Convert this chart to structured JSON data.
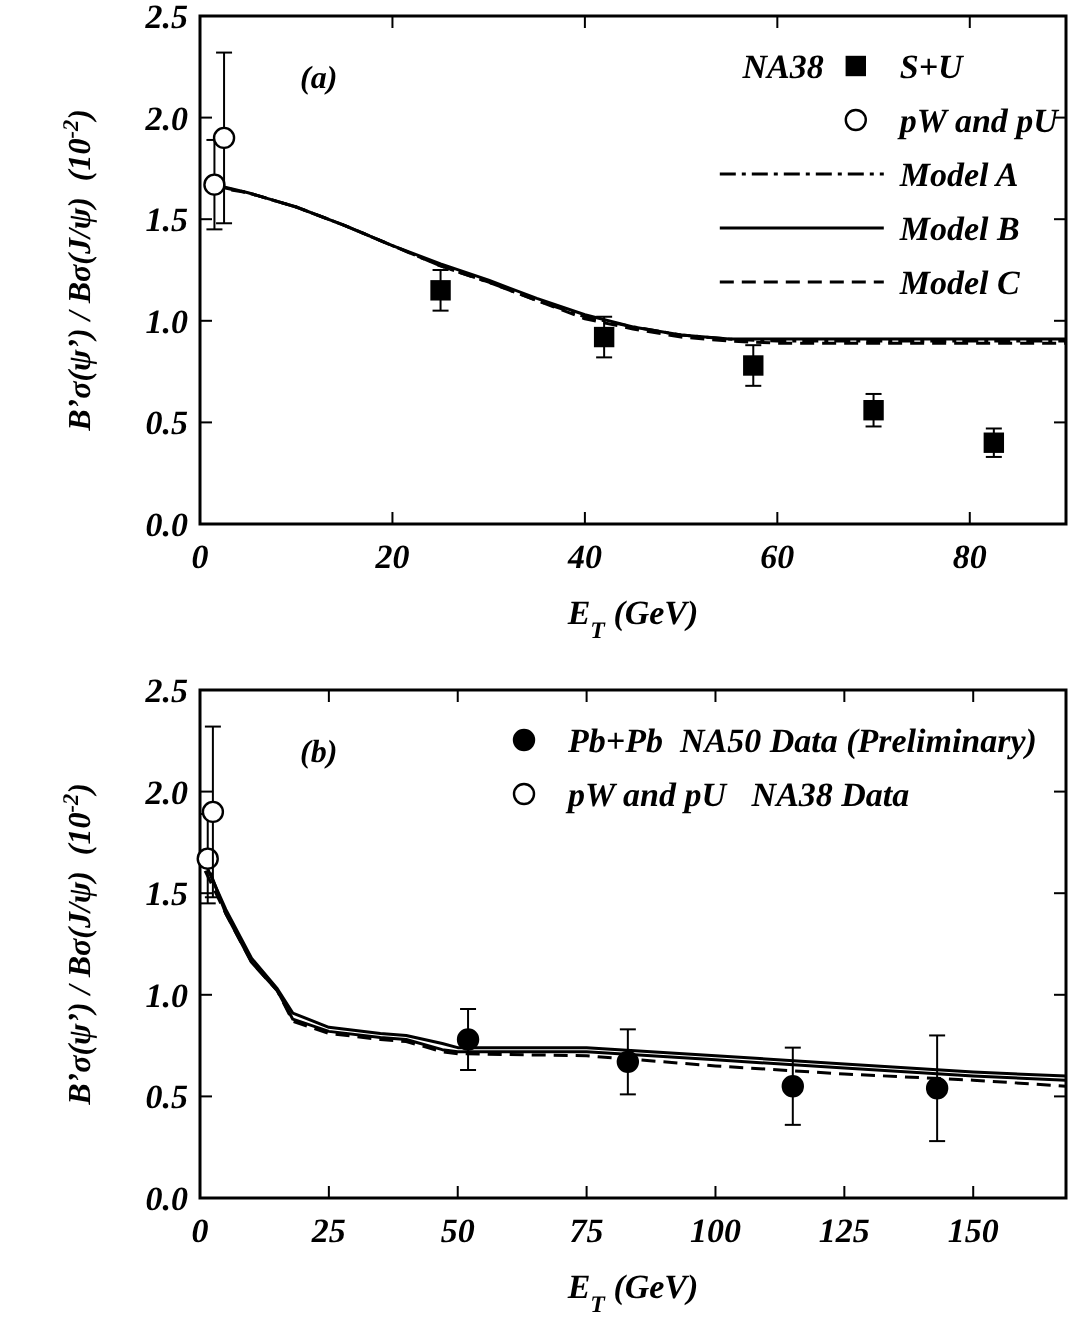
{
  "chart_data": [
    {
      "type": "line",
      "ylabel": "B’σ(ψ’) / Bσ(J/ψ)  (10$^{-2}$)",
      "xlabel": "E$_{T}$  (GeV)",
      "annotations": [
        "(a)"
      ],
      "legend": "top right",
      "legend_title": "NA38",
      "xlim": [
        0,
        90
      ],
      "xticks": [
        0,
        20,
        40,
        60,
        80
      ],
      "ylim": [
        0,
        2.5
      ],
      "yticks": [
        {
          "value": 0,
          "label": "0.0"
        },
        {
          "value": 0.5,
          "label": "0.5"
        },
        {
          "value": 1,
          "label": "1.0"
        },
        {
          "value": 1.5,
          "label": "1.5"
        },
        {
          "value": 2,
          "label": "2.0"
        },
        {
          "value": 2.5,
          "label": "2.5"
        }
      ],
      "grid": false,
      "series": [
        {
          "name": "S+U",
          "type": "scatter",
          "marker": "square",
          "color": "#000000",
          "x": [
            25,
            42,
            57.5,
            70,
            82.5
          ],
          "values": [
            1.15,
            0.92,
            0.78,
            0.56,
            0.4
          ],
          "errors": [
            0.1,
            0.1,
            0.1,
            0.08,
            0.07
          ]
        },
        {
          "name": "pW and pU",
          "type": "scatter",
          "marker": "circle",
          "color": "#ffffff",
          "x": [
            1.5,
            2.5
          ],
          "values": [
            1.67,
            1.9
          ],
          "errors": [
            [
              1.45,
              1.89
            ],
            [
              1.48,
              2.32
            ]
          ]
        },
        {
          "name": "Model A",
          "line_style": "dashdot",
          "color": "#000000",
          "x": [
            2,
            5,
            10,
            15,
            20,
            25,
            30,
            35,
            40,
            45,
            50,
            55,
            60,
            70,
            80,
            90
          ],
          "values": [
            1.66,
            1.63,
            1.56,
            1.47,
            1.37,
            1.27,
            1.19,
            1.1,
            1.02,
            0.97,
            0.93,
            0.91,
            0.9,
            0.9,
            0.9,
            0.9
          ]
        },
        {
          "name": "Model B",
          "line_style": "solid",
          "color": "#000000",
          "x": [
            1.5,
            5,
            10,
            15,
            20,
            25,
            30,
            35,
            40,
            45,
            50,
            55,
            60,
            70,
            80,
            90
          ],
          "values": [
            1.67,
            1.63,
            1.56,
            1.47,
            1.37,
            1.28,
            1.2,
            1.11,
            1.03,
            0.97,
            0.93,
            0.91,
            0.91,
            0.91,
            0.91,
            0.91
          ]
        },
        {
          "name": "Model C",
          "line_style": "dashed",
          "color": "#000000",
          "x": [
            1,
            5,
            10,
            15,
            20,
            25,
            30,
            35,
            40,
            45,
            50,
            55,
            60,
            70,
            80,
            90
          ],
          "values": [
            1.66,
            1.63,
            1.56,
            1.47,
            1.37,
            1.27,
            1.19,
            1.1,
            1.01,
            0.96,
            0.92,
            0.9,
            0.89,
            0.89,
            0.89,
            0.89
          ]
        }
      ]
    },
    {
      "type": "line",
      "ylabel": "B’σ(ψ’) / Bσ(J/ψ)  (10$^{-2}$)",
      "xlabel": "E$_{T}$  (GeV)",
      "annotations": [
        "(b)"
      ],
      "legend": "top right",
      "xlim": [
        0,
        168
      ],
      "xticks": [
        0,
        25,
        50,
        75,
        100,
        125,
        150
      ],
      "ylim": [
        0,
        2.5
      ],
      "yticks": [
        {
          "value": 0,
          "label": "0.0"
        },
        {
          "value": 0.5,
          "label": "0.5"
        },
        {
          "value": 1,
          "label": "1.0"
        },
        {
          "value": 1.5,
          "label": "1.5"
        },
        {
          "value": 2,
          "label": "2.0"
        },
        {
          "value": 2.5,
          "label": "2.5"
        }
      ],
      "grid": false,
      "series": [
        {
          "name": "Pb+Pb  NA50 Data (Preliminary)",
          "type": "scatter",
          "marker": "circle",
          "color": "#000000",
          "x": [
            52,
            83,
            115,
            143
          ],
          "values": [
            0.78,
            0.67,
            0.55,
            0.54
          ],
          "errors": [
            0.15,
            0.16,
            0.19,
            0.26
          ]
        },
        {
          "name": "pW and pU   NA38 Data",
          "type": "scatter",
          "marker": "circle",
          "color": "#ffffff",
          "x": [
            1.5,
            2.5
          ],
          "values": [
            1.67,
            1.9
          ],
          "errors": [
            [
              1.45,
              1.89
            ],
            [
              1.48,
              2.32
            ]
          ]
        },
        {
          "line_style": "solid",
          "color": "#000000",
          "x": [
            1.5,
            5,
            10,
            15,
            18,
            25,
            35,
            40,
            47,
            50,
            75,
            100,
            125,
            150,
            168
          ],
          "values": [
            1.62,
            1.42,
            1.18,
            1.03,
            0.91,
            0.84,
            0.81,
            0.8,
            0.76,
            0.74,
            0.74,
            0.7,
            0.66,
            0.62,
            0.6
          ]
        },
        {
          "line_style": "solid",
          "color": "#000000",
          "x": [
            2,
            5,
            10,
            15,
            18,
            25,
            35,
            40,
            47,
            50,
            75,
            100,
            125,
            150,
            168
          ],
          "values": [
            1.6,
            1.4,
            1.16,
            1.02,
            0.88,
            0.82,
            0.79,
            0.78,
            0.73,
            0.72,
            0.72,
            0.68,
            0.64,
            0.6,
            0.58
          ]
        },
        {
          "line_style": "dashed",
          "color": "#000000",
          "x": [
            1,
            5,
            10,
            15,
            18,
            25,
            35,
            40,
            47,
            50,
            75,
            100,
            125,
            150,
            168
          ],
          "values": [
            1.61,
            1.4,
            1.16,
            1.02,
            0.87,
            0.81,
            0.78,
            0.77,
            0.72,
            0.71,
            0.7,
            0.65,
            0.61,
            0.58,
            0.55
          ]
        }
      ]
    }
  ]
}
